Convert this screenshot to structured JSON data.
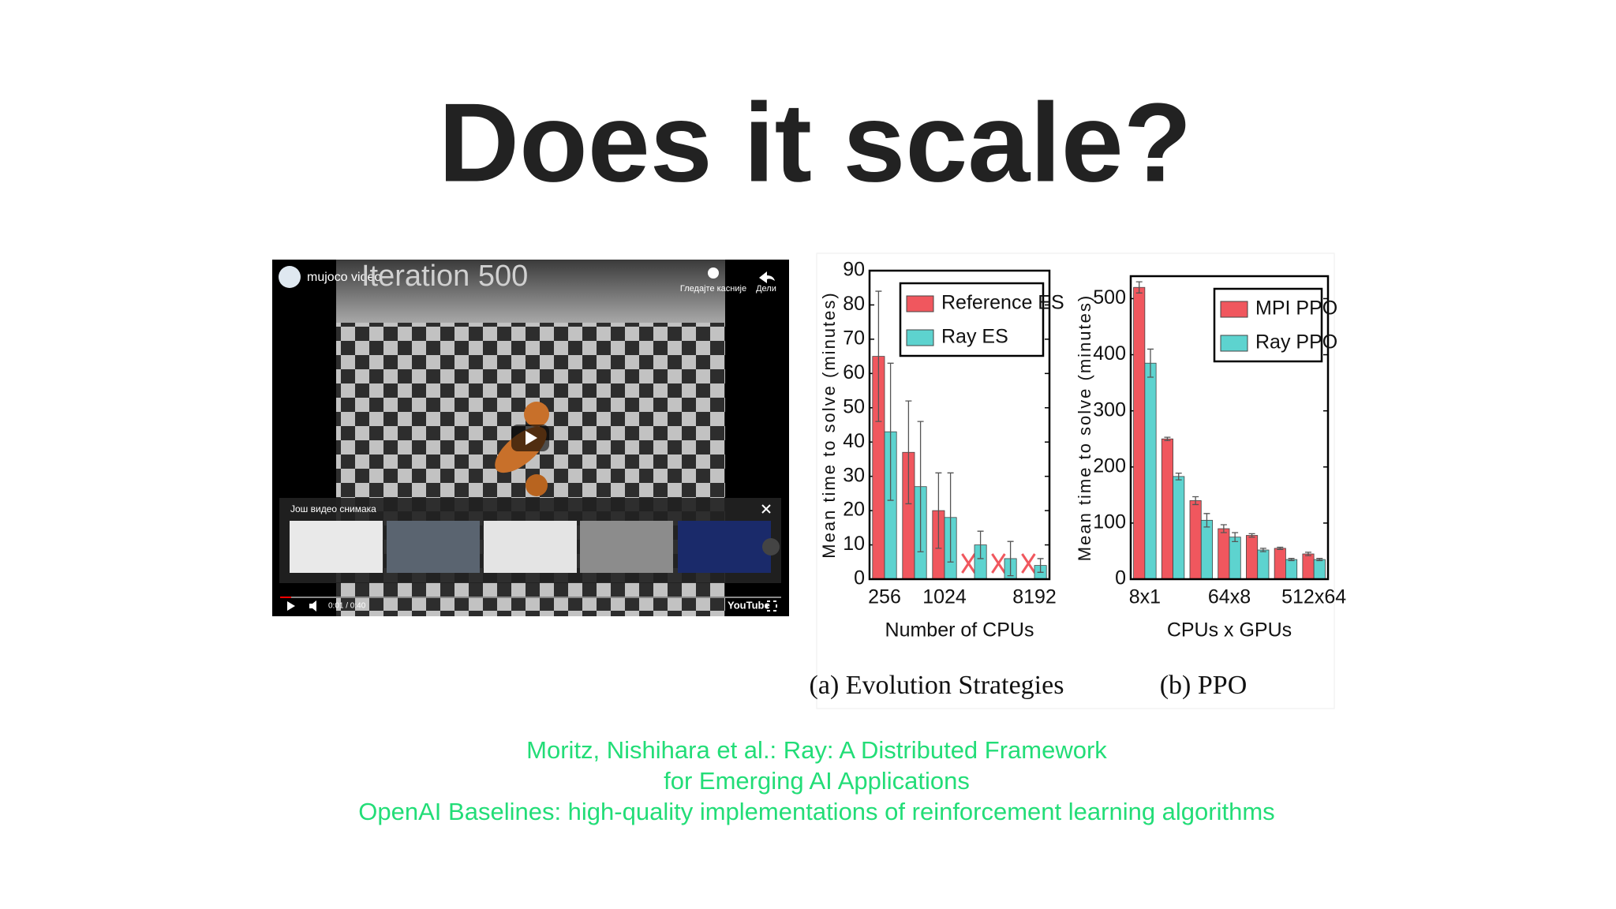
{
  "title": "Does it scale?",
  "video": {
    "channel": "mujoco video",
    "overlay_text": "Iteration 500",
    "watch_later": "Гледајте касније",
    "share": "Дели",
    "more_videos": "Још видео снимака",
    "time": "0:01 / 0:40",
    "brand": "YouTube"
  },
  "chart_data": [
    {
      "type": "bar",
      "ylabel": "Mean time to solve (minutes)",
      "xlabel": "Number of CPUs",
      "caption": "(a) Evolution Strategies",
      "categories": [
        "256",
        null,
        "1024",
        null,
        null,
        "8192"
      ],
      "series": [
        {
          "name": "Reference ES",
          "color": "#f0575e",
          "values": [
            65,
            37,
            20,
            null,
            null,
            null
          ],
          "errors": [
            19,
            15,
            11,
            null,
            null,
            null
          ]
        },
        {
          "name": "Ray ES",
          "color": "#5dd3cf",
          "values": [
            43,
            27,
            18,
            10,
            6,
            4
          ],
          "errors": [
            20,
            19,
            13,
            4,
            5,
            2
          ]
        }
      ],
      "ylim": [
        0,
        90
      ],
      "yticks": [
        0,
        10,
        20,
        30,
        40,
        50,
        60,
        70,
        80,
        90
      ],
      "legend": "upper right"
    },
    {
      "type": "bar",
      "ylabel": "Mean time to solve (minutes)",
      "xlabel": "CPUs x GPUs",
      "caption": "(b) PPO",
      "categories": [
        "8x1",
        null,
        null,
        "64x8",
        null,
        null,
        "512x64"
      ],
      "series": [
        {
          "name": "MPI PPO",
          "color": "#f0575e",
          "values": [
            520,
            250,
            140,
            90,
            78,
            55,
            45
          ],
          "errors": [
            10,
            3,
            7,
            7,
            3,
            2,
            3
          ]
        },
        {
          "name": "Ray PPO",
          "color": "#5dd3cf",
          "values": [
            385,
            183,
            105,
            75,
            52,
            35,
            35
          ],
          "errors": [
            25,
            6,
            12,
            8,
            3,
            2,
            2
          ]
        }
      ],
      "ylim": [
        0,
        540
      ],
      "yticks": [
        0,
        100,
        200,
        300,
        400,
        500
      ],
      "legend": "upper right"
    }
  ],
  "citations": [
    "Moritz, Nishihara et al.: Ray: A Distributed Framework",
    "for Emerging AI Applications",
    "OpenAI Baselines: high-quality implementations of reinforcement learning algorithms"
  ]
}
